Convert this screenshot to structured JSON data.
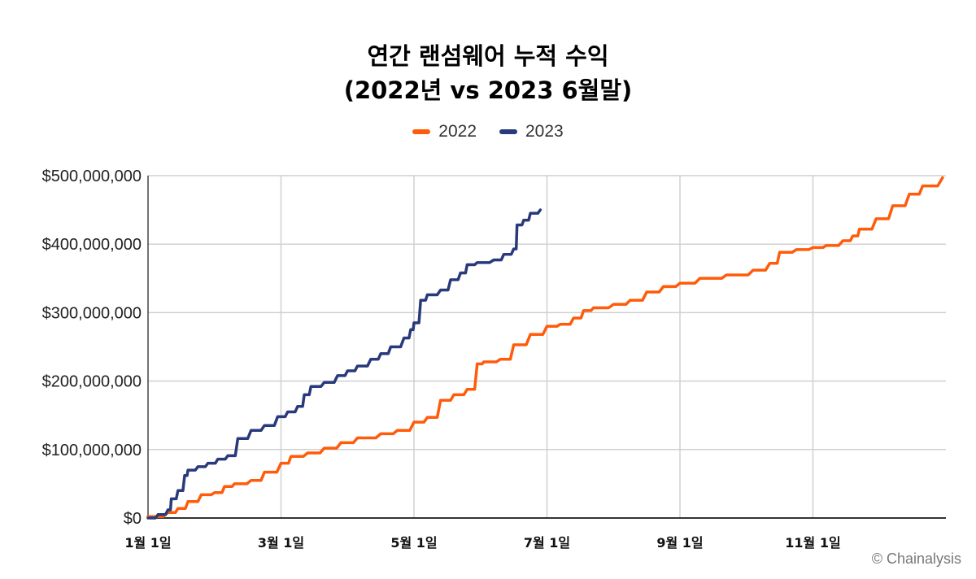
{
  "chart_data": {
    "type": "line",
    "title": "연간 랜섬웨어 누적 수익",
    "subtitle": "(2022년 vs 2023 6월말)",
    "xlabel": "",
    "ylabel": "",
    "x_unit": "month",
    "xlim": [
      1,
      13
    ],
    "ylim": [
      0,
      500000000
    ],
    "grid": true,
    "legend": "top-center",
    "x_ticks": [
      {
        "value": 1,
        "label": "1월 1일"
      },
      {
        "value": 3,
        "label": "3월 1일"
      },
      {
        "value": 5,
        "label": "5월 1일"
      },
      {
        "value": 7,
        "label": "7월 1일"
      },
      {
        "value": 9,
        "label": "9월 1일"
      },
      {
        "value": 11,
        "label": "11월 1일"
      }
    ],
    "y_ticks": [
      {
        "value": 0,
        "label": "$0"
      },
      {
        "value": 100000000,
        "label": "$100,000,000"
      },
      {
        "value": 200000000,
        "label": "$200,000,000"
      },
      {
        "value": 300000000,
        "label": "$300,000,000"
      },
      {
        "value": 400000000,
        "label": "$400,000,000"
      },
      {
        "value": 500000000,
        "label": "$500,000,000"
      }
    ],
    "series": [
      {
        "name": "2022",
        "color": "#FF5B0A",
        "x": [
          1.0,
          1.3,
          1.45,
          1.6,
          1.8,
          2.0,
          2.15,
          2.3,
          2.55,
          2.75,
          3.0,
          3.15,
          3.4,
          3.65,
          3.9,
          4.15,
          4.5,
          4.75,
          5.0,
          5.2,
          5.4,
          5.6,
          5.8,
          5.95,
          6.05,
          6.3,
          6.5,
          6.75,
          7.0,
          7.2,
          7.4,
          7.55,
          7.7,
          8.0,
          8.25,
          8.5,
          8.75,
          9.0,
          9.3,
          9.7,
          10.1,
          10.35,
          10.5,
          10.75,
          11.0,
          11.2,
          11.45,
          11.6,
          11.7,
          11.95,
          12.2,
          12.45,
          12.65,
          12.95
        ],
        "y": [
          2000000,
          8000000,
          14000000,
          24000000,
          34000000,
          37000000,
          46000000,
          50000000,
          55000000,
          67000000,
          80000000,
          90000000,
          95000000,
          102000000,
          110000000,
          117000000,
          123000000,
          128000000,
          140000000,
          147000000,
          172000000,
          180000000,
          188000000,
          225000000,
          228000000,
          232000000,
          253000000,
          268000000,
          280000000,
          283000000,
          292000000,
          303000000,
          307000000,
          312000000,
          318000000,
          330000000,
          338000000,
          343000000,
          350000000,
          355000000,
          362000000,
          372000000,
          388000000,
          392000000,
          395000000,
          398000000,
          405000000,
          412000000,
          422000000,
          437000000,
          456000000,
          473000000,
          485000000,
          497000000
        ]
      },
      {
        "name": "2023",
        "color": "#283A7B",
        "x": [
          1.0,
          1.15,
          1.3,
          1.35,
          1.45,
          1.55,
          1.6,
          1.75,
          1.9,
          2.05,
          2.2,
          2.35,
          2.55,
          2.75,
          2.95,
          3.1,
          3.25,
          3.35,
          3.45,
          3.65,
          3.85,
          4.0,
          4.15,
          4.35,
          4.5,
          4.65,
          4.85,
          4.95,
          5.0,
          5.1,
          5.2,
          5.4,
          5.55,
          5.7,
          5.8,
          5.95,
          6.2,
          6.35,
          6.5,
          6.55,
          6.65,
          6.75,
          6.9
        ],
        "y": [
          0,
          5000000,
          12000000,
          28000000,
          40000000,
          62000000,
          70000000,
          75000000,
          80000000,
          86000000,
          91000000,
          116000000,
          128000000,
          135000000,
          148000000,
          155000000,
          163000000,
          180000000,
          192000000,
          198000000,
          208000000,
          215000000,
          222000000,
          232000000,
          240000000,
          250000000,
          263000000,
          275000000,
          285000000,
          318000000,
          326000000,
          333000000,
          348000000,
          358000000,
          370000000,
          373000000,
          377000000,
          385000000,
          393000000,
          428000000,
          435000000,
          445000000,
          450000000
        ]
      }
    ]
  },
  "source_text": "© Chainalysis"
}
